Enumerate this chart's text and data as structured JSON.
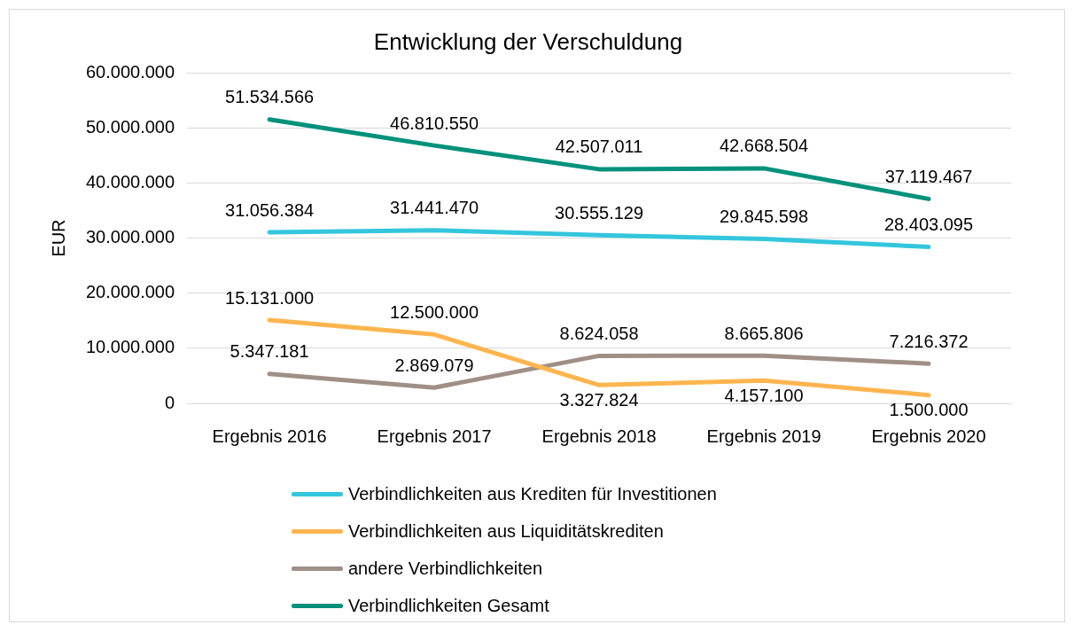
{
  "chart_data": {
    "type": "line",
    "title": "Entwicklung der Verschuldung",
    "ylabel": "EUR",
    "categories": [
      "Ergebnis 2016",
      "Ergebnis 2017",
      "Ergebnis 2018",
      "Ergebnis 2019",
      "Ergebnis 2020"
    ],
    "series": [
      {
        "name": "Verbindlichkeiten aus Krediten für Investitionen",
        "color": "#33c6dd",
        "values": [
          31056384,
          31441470,
          30555129,
          29845598,
          28403095
        ],
        "value_labels": [
          "31.056.384",
          "31.441.470",
          "30.555.129",
          "29.845.598",
          "28.403.095"
        ]
      },
      {
        "name": "Verbindlichkeiten aus Liquiditätskrediten",
        "color": "#ffb54f",
        "values": [
          15131000,
          12500000,
          3327824,
          4157100,
          1500000
        ],
        "value_labels": [
          "15.131.000",
          "12.500.000",
          "3.327.824",
          "4.157.100",
          "1.500.000"
        ]
      },
      {
        "name": "andere Verbindlichkeiten",
        "color": "#a08f87",
        "values": [
          5347181,
          2869079,
          8624058,
          8665806,
          7216372
        ],
        "value_labels": [
          "5.347.181",
          "2.869.079",
          "8.624.058",
          "8.665.806",
          "7.216.372"
        ]
      },
      {
        "name": "Verbindlichkeiten Gesamt",
        "color": "#00917c",
        "values": [
          51534566,
          46810550,
          42507011,
          42668504,
          37119467
        ],
        "value_labels": [
          "51.534.566",
          "46.810.550",
          "42.507.011",
          "42.668.504",
          "37.119.467"
        ]
      }
    ],
    "ylim": [
      0,
      60000000
    ],
    "yticks": [
      {
        "value": 0,
        "label": "0"
      },
      {
        "value": 10000000,
        "label": "10.000.000"
      },
      {
        "value": 20000000,
        "label": "20.000.000"
      },
      {
        "value": 30000000,
        "label": "30.000.000"
      },
      {
        "value": 40000000,
        "label": "40.000.000"
      },
      {
        "value": 50000000,
        "label": "50.000.000"
      },
      {
        "value": 60000000,
        "label": "60.000.000"
      }
    ],
    "grid": "y",
    "legend": "bottom",
    "marker": "none",
    "line_style": "solid"
  }
}
